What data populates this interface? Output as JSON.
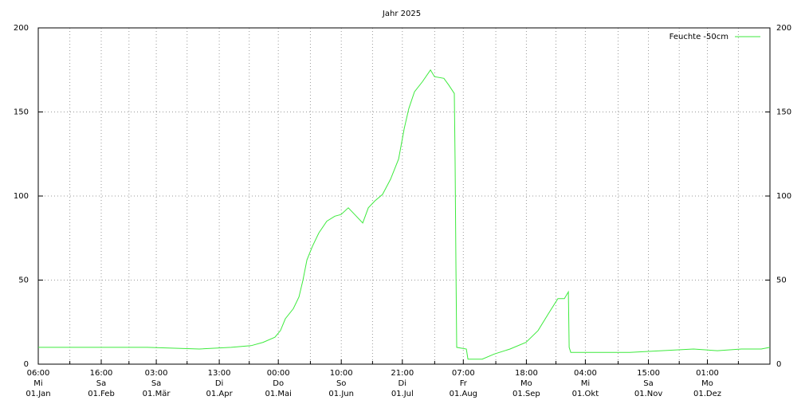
{
  "chart_data": {
    "type": "line",
    "title": "Jahr 2025",
    "xlim": [
      0.25,
      365.25
    ],
    "ylim": [
      0,
      200
    ],
    "yticks": [
      0,
      50,
      100,
      150,
      200
    ],
    "xticks": [
      {
        "value": 0.25,
        "label": [
          "06:00",
          "Mi",
          "01.Jan"
        ]
      },
      {
        "value": 31.667,
        "label": [
          "16:00",
          "Sa",
          "01.Feb"
        ]
      },
      {
        "value": 59.125,
        "label": [
          "03:00",
          "Sa",
          "01.Mär"
        ]
      },
      {
        "value": 90.542,
        "label": [
          "13:00",
          "Di",
          "01.Apr"
        ]
      },
      {
        "value": 120,
        "label": [
          "00:00",
          "Do",
          "01.Mai"
        ]
      },
      {
        "value": 151.417,
        "label": [
          "10:00",
          "So",
          "01.Jun"
        ]
      },
      {
        "value": 181.875,
        "label": [
          "21:00",
          "Di",
          "01.Jul"
        ]
      },
      {
        "value": 212.292,
        "label": [
          "07:00",
          "Fr",
          "01.Aug"
        ]
      },
      {
        "value": 243.75,
        "label": [
          "18:00",
          "Mo",
          "01.Sep"
        ]
      },
      {
        "value": 273.167,
        "label": [
          "04:00",
          "Mi",
          "01.Okt"
        ]
      },
      {
        "value": 304.625,
        "label": [
          "15:00",
          "Sa",
          "01.Nov"
        ]
      },
      {
        "value": 334.042,
        "label": [
          "01:00",
          "Mo",
          "01.Dez"
        ]
      }
    ],
    "xminorticks": [
      16,
      45.5,
      74.5,
      105.5,
      136,
      167,
      198,
      228.5,
      258.5,
      289.5,
      320,
      349.5
    ],
    "grid": true,
    "legend": "top-right",
    "series": [
      {
        "name": "Feuchte -50cm",
        "color": "#3dea3d",
        "x": [
          0.25,
          20.9,
          40.8,
          54.7,
          80.6,
          96.5,
          106.4,
          112.4,
          118.3,
          121.1,
          123.5,
          127.5,
          130.3,
          132.3,
          134.3,
          137.0,
          140.2,
          144.2,
          148.2,
          151.3,
          154.9,
          158.1,
          162.1,
          164.9,
          168.1,
          172.0,
          176.0,
          180.0,
          182.8,
          185.1,
          187.9,
          191.9,
          195.9,
          197.9,
          202.6,
          205.0,
          207.8,
          208.2,
          208.6,
          209.0,
          213.8,
          214.6,
          221.7,
          227.7,
          235.6,
          243.6,
          249.6,
          254.7,
          259.5,
          262.7,
          264.7,
          265.1,
          265.9,
          295.3,
          311.2,
          327.1,
          339.0,
          351.0,
          360.9,
          365.25
        ],
        "values": [
          10,
          10,
          10,
          10,
          9,
          10,
          11,
          13,
          16,
          20,
          27,
          33,
          40,
          50,
          62,
          70,
          78,
          85,
          88,
          89,
          93,
          89,
          84,
          93,
          97,
          101,
          110,
          122,
          140,
          152,
          162,
          168,
          175,
          171,
          170,
          166,
          161,
          120,
          60,
          10,
          9,
          3,
          3,
          6,
          9,
          13,
          20,
          30,
          39,
          39,
          43,
          10,
          7,
          7,
          8,
          9,
          8,
          9,
          9,
          10
        ]
      }
    ]
  }
}
